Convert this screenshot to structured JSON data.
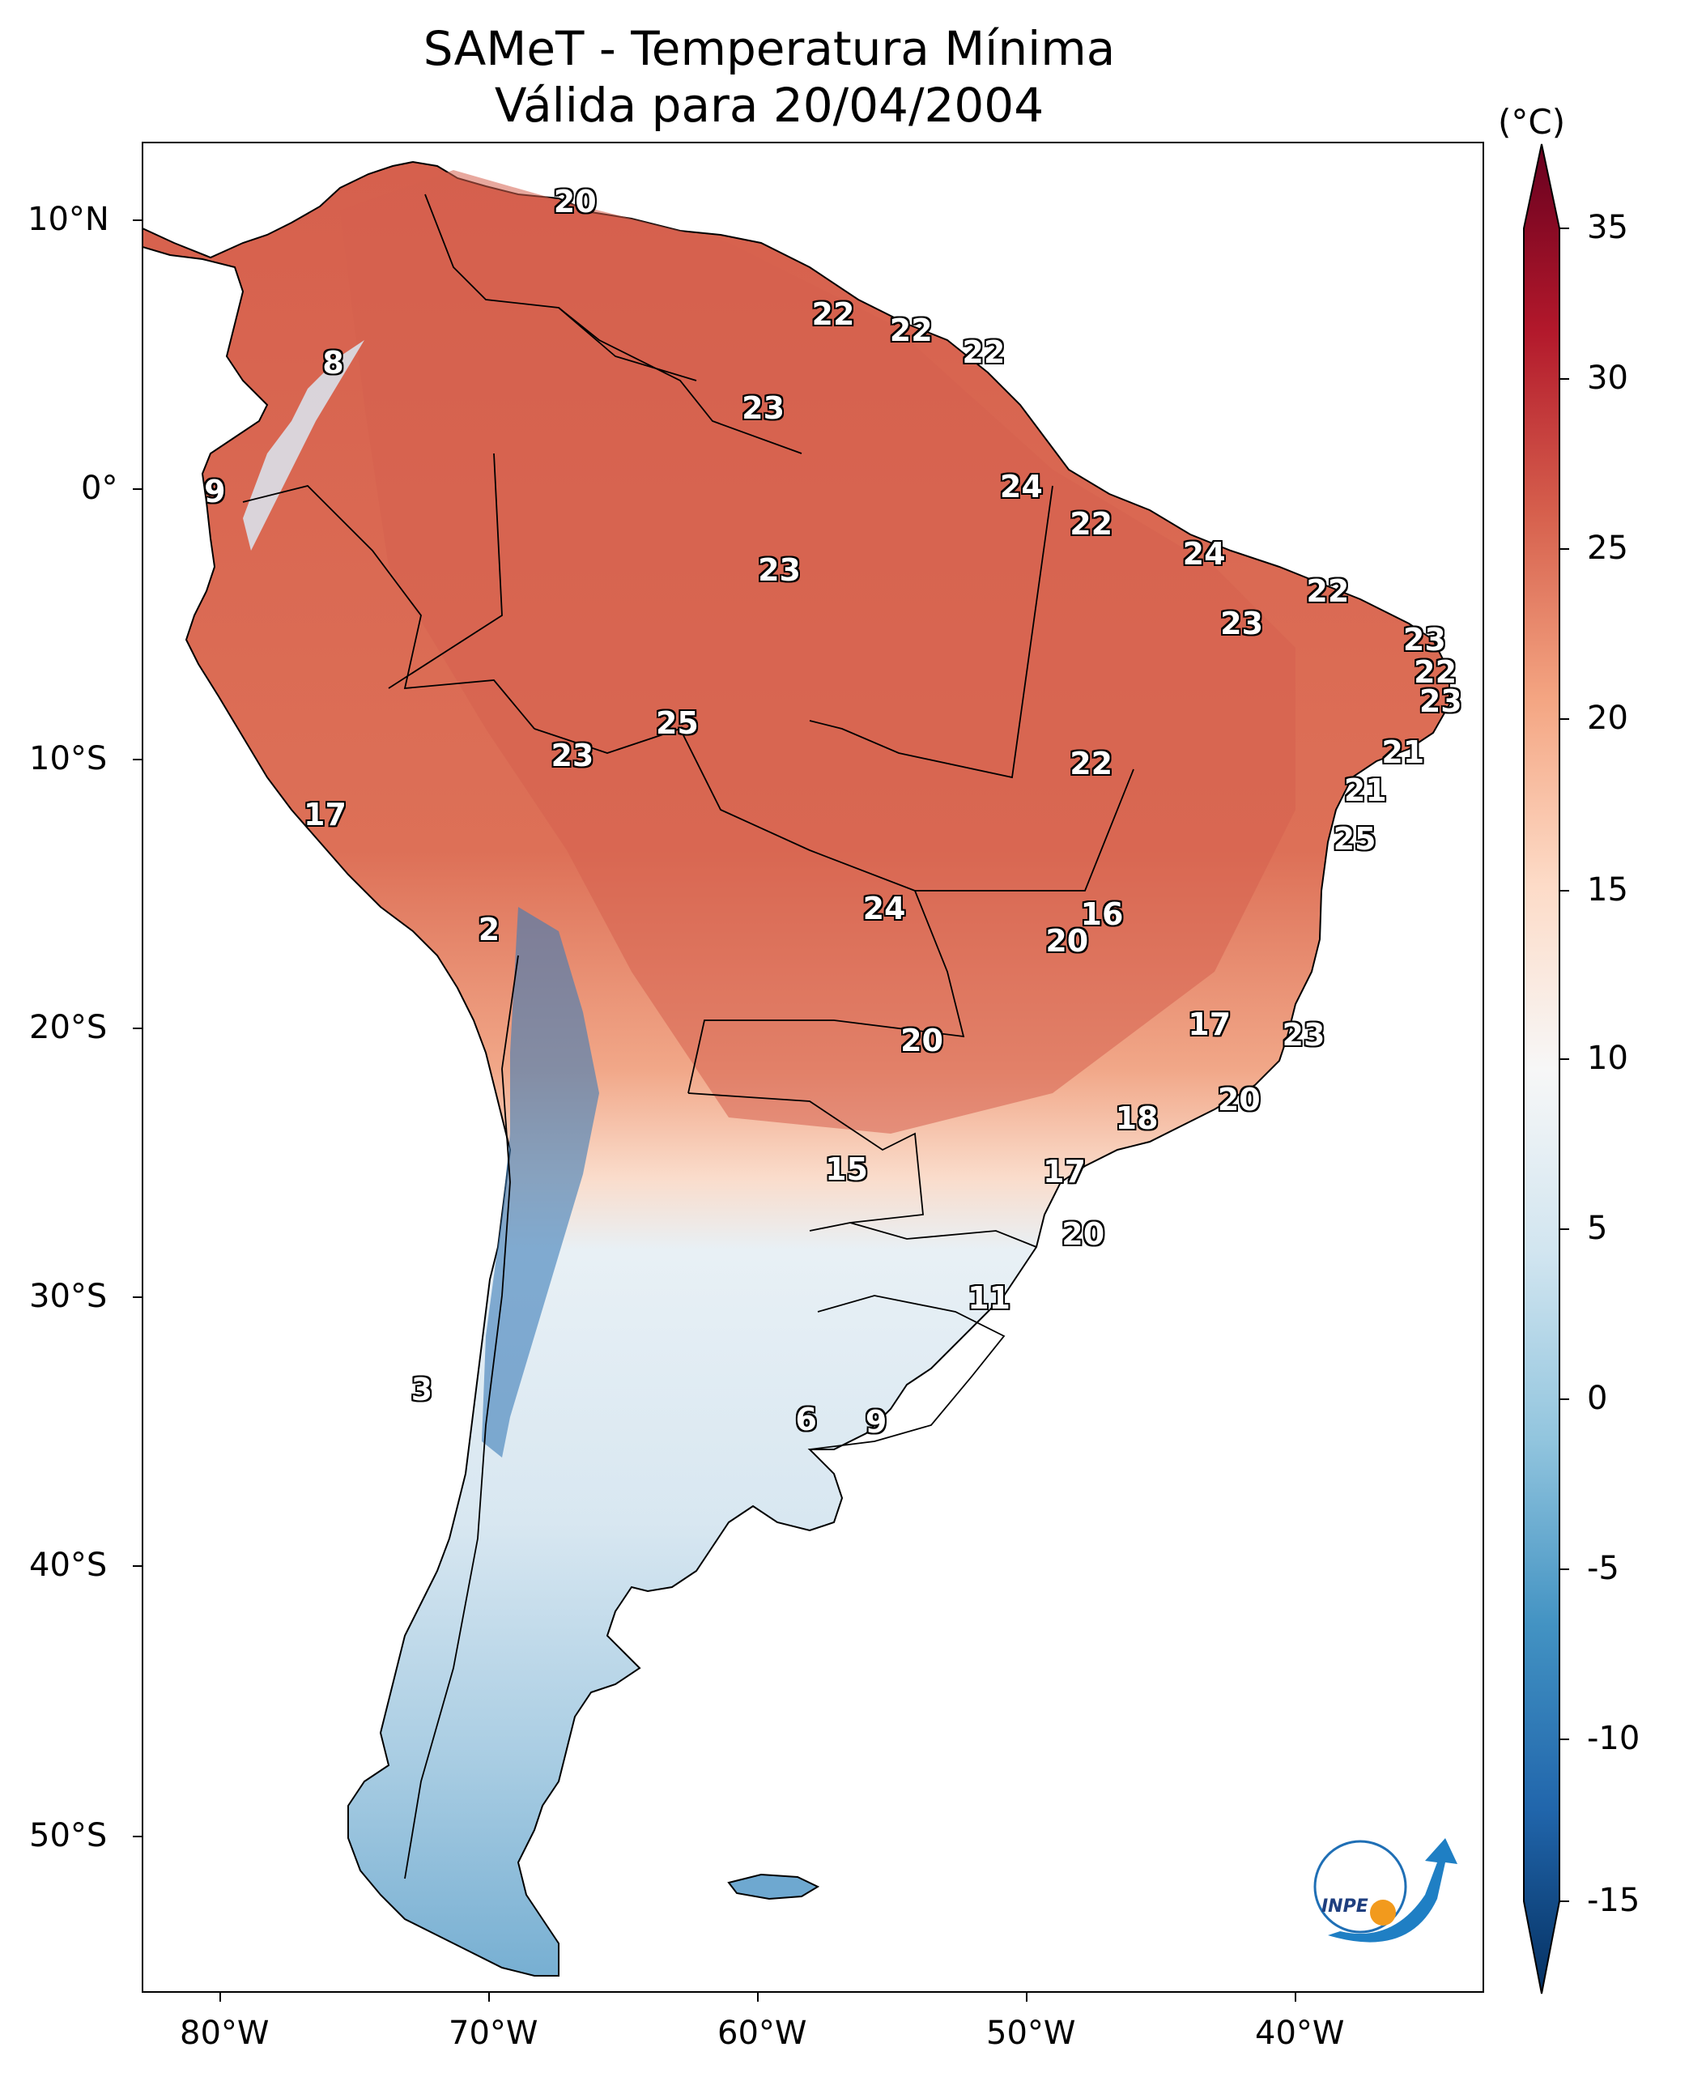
{
  "title": {
    "line1": "SAMeT - Temperatura Mínima",
    "line2": "Válida para 20/04/2004"
  },
  "colorbar": {
    "unit": "(°C)",
    "ticks": [
      "35",
      "30",
      "25",
      "20",
      "15",
      "10",
      "5",
      "0",
      "-5",
      "-10",
      "-15"
    ],
    "colormap": "RdBu_r",
    "range": [
      -15,
      35
    ]
  },
  "axes": {
    "lon_ticks": [
      "80°W",
      "70°W",
      "60°W",
      "50°W",
      "40°W"
    ],
    "lat_ticks": [
      "10°N",
      "0°",
      "10°S",
      "20°S",
      "30°S",
      "40°S",
      "50°S"
    ]
  },
  "labels": [
    {
      "v": "20",
      "lon": -66.8,
      "lat": 10.7
    },
    {
      "v": "22",
      "lon": -57.2,
      "lat": 6.5
    },
    {
      "v": "22",
      "lon": -54.3,
      "lat": 5.9
    },
    {
      "v": "22",
      "lon": -51.6,
      "lat": 5.1
    },
    {
      "v": "8",
      "lon": -75.8,
      "lat": 4.7
    },
    {
      "v": "23",
      "lon": -59.8,
      "lat": 3.0
    },
    {
      "v": "9",
      "lon": -80.2,
      "lat": -0.1
    },
    {
      "v": "24",
      "lon": -50.2,
      "lat": 0.1
    },
    {
      "v": "22",
      "lon": -47.6,
      "lat": -1.3
    },
    {
      "v": "24",
      "lon": -43.4,
      "lat": -2.4
    },
    {
      "v": "23",
      "lon": -59.2,
      "lat": -3.0
    },
    {
      "v": "22",
      "lon": -38.8,
      "lat": -3.8
    },
    {
      "v": "23",
      "lon": -42.0,
      "lat": -5.0
    },
    {
      "v": "23",
      "lon": -35.2,
      "lat": -5.6
    },
    {
      "v": "22",
      "lon": -34.8,
      "lat": -6.8
    },
    {
      "v": "23",
      "lon": -34.6,
      "lat": -7.9
    },
    {
      "v": "25",
      "lon": -63.0,
      "lat": -8.7
    },
    {
      "v": "21",
      "lon": -36.0,
      "lat": -9.8
    },
    {
      "v": "23",
      "lon": -66.9,
      "lat": -9.9
    },
    {
      "v": "22",
      "lon": -47.6,
      "lat": -10.2
    },
    {
      "v": "21",
      "lon": -37.4,
      "lat": -11.2
    },
    {
      "v": "17",
      "lon": -76.1,
      "lat": -12.1
    },
    {
      "v": "25",
      "lon": -37.8,
      "lat": -13.0
    },
    {
      "v": "24",
      "lon": -55.3,
      "lat": -15.6
    },
    {
      "v": "16",
      "lon": -47.2,
      "lat": -15.8
    },
    {
      "v": "20",
      "lon": -48.5,
      "lat": -16.8
    },
    {
      "v": "2",
      "lon": -70.0,
      "lat": -16.4
    },
    {
      "v": "17",
      "lon": -43.2,
      "lat": -19.9
    },
    {
      "v": "23",
      "lon": -39.7,
      "lat": -20.3
    },
    {
      "v": "20",
      "lon": -53.9,
      "lat": -20.5
    },
    {
      "v": "20",
      "lon": -42.1,
      "lat": -22.7
    },
    {
      "v": "18",
      "lon": -45.9,
      "lat": -23.4
    },
    {
      "v": "15",
      "lon": -56.7,
      "lat": -25.3
    },
    {
      "v": "17",
      "lon": -48.6,
      "lat": -25.4
    },
    {
      "v": "20",
      "lon": -47.9,
      "lat": -27.7
    },
    {
      "v": "11",
      "lon": -51.4,
      "lat": -30.1
    },
    {
      "v": "3",
      "lon": -72.5,
      "lat": -33.5
    },
    {
      "v": "6",
      "lon": -58.2,
      "lat": -34.6
    },
    {
      "v": "9",
      "lon": -55.6,
      "lat": -34.7
    }
  ],
  "logo": {
    "text": "INPE"
  }
}
